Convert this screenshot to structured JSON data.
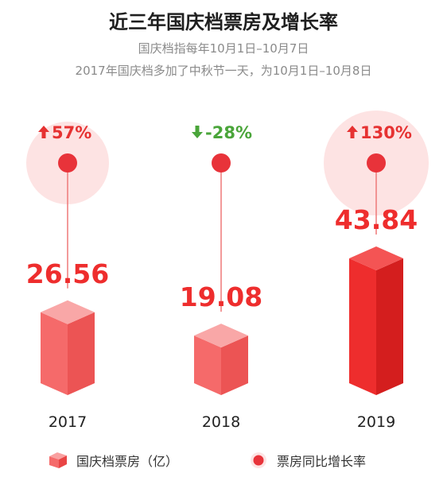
{
  "title": "近三年国庆档票房及增长率",
  "subtitle_lines": [
    "国庆档指每年10月1日–10月7日",
    "2017年国庆档多加了中秋节一天，为10月1日–10月8日"
  ],
  "colors": {
    "bar_light": "#f56a6a",
    "bar_strong": "#ee2d2d",
    "up": "#e63232",
    "down": "#4aa53a",
    "dot": "#e8333a",
    "halo": "#fde3e3"
  },
  "legend": {
    "box_office": "国庆档票房（亿）",
    "growth": "票房同比增长率"
  },
  "chart_data": {
    "type": "bar",
    "categories": [
      "2017",
      "2018",
      "2019"
    ],
    "series": [
      {
        "name": "国庆档票房（亿）",
        "values": [
          26.56,
          19.08,
          43.84
        ]
      },
      {
        "name": "票房同比增长率",
        "values": [
          57,
          -28,
          130
        ]
      }
    ],
    "value_labels": [
      "26.56",
      "19.08",
      "43.84"
    ],
    "growth_labels": [
      "57%",
      "-28%",
      "130%"
    ],
    "growth_direction": [
      "up",
      "down",
      "up"
    ],
    "highlight": [
      true,
      false,
      true
    ]
  }
}
